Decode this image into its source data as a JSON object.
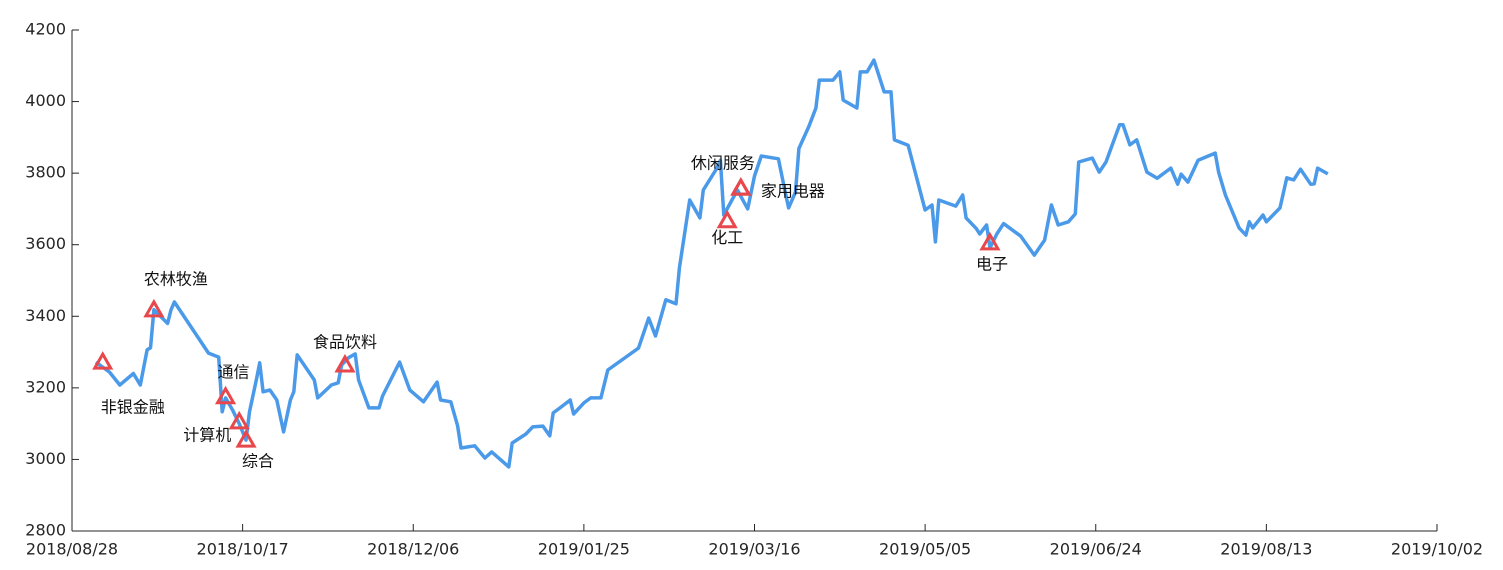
{
  "chart_data": {
    "type": "line",
    "x": [
      "2018/09/04",
      "2018/09/08",
      "2018/09/11",
      "2018/09/15",
      "2018/09/17",
      "2018/09/19",
      "2018/09/20",
      "2018/09/21",
      "2018/09/25",
      "2018/09/26",
      "2018/09/27",
      "2018/10/07",
      "2018/10/10",
      "2018/10/11",
      "2018/10/12",
      "2018/10/14",
      "2018/10/16",
      "2018/10/18",
      "2018/10/19",
      "2018/10/21",
      "2018/10/22",
      "2018/10/23",
      "2018/10/25",
      "2018/10/27",
      "2018/10/29",
      "2018/10/31",
      "2018/11/01",
      "2018/11/02",
      "2018/11/04",
      "2018/11/07",
      "2018/11/08",
      "2018/11/12",
      "2018/11/14",
      "2018/11/15",
      "2018/11/17",
      "2018/11/19",
      "2018/11/20",
      "2018/11/23",
      "2018/11/26",
      "2018/11/27",
      "2018/12/02",
      "2018/12/05",
      "2018/12/09",
      "2018/12/13",
      "2018/12/14",
      "2018/12/17",
      "2018/12/19",
      "2018/12/20",
      "2018/12/24",
      "2018/12/27",
      "2018/12/29",
      "2019/01/03",
      "2019/01/04",
      "2019/01/08",
      "2019/01/10",
      "2019/01/13",
      "2019/01/15",
      "2019/01/16",
      "2019/01/18",
      "2019/01/21",
      "2019/01/22",
      "2019/01/25",
      "2019/01/27",
      "2019/01/30",
      "2019/02/01",
      "2019/02/10",
      "2019/02/13",
      "2019/02/15",
      "2019/02/18",
      "2019/02/21",
      "2019/02/22",
      "2019/02/25",
      "2019/02/28",
      "2019/03/01",
      "2019/03/05",
      "2019/03/06",
      "2019/03/07",
      "2019/03/11",
      "2019/03/14",
      "2019/03/16",
      "2019/03/18",
      "2019/03/23",
      "2019/03/25",
      "2019/03/26",
      "2019/03/28",
      "2019/03/29",
      "2019/04/01",
      "2019/04/03",
      "2019/04/04",
      "2019/04/08",
      "2019/04/10",
      "2019/04/11",
      "2019/04/15",
      "2019/04/16",
      "2019/04/18",
      "2019/04/20",
      "2019/04/23",
      "2019/04/25",
      "2019/04/26",
      "2019/04/30",
      "2019/05/05",
      "2019/05/07",
      "2019/05/08",
      "2019/05/09",
      "2019/05/14",
      "2019/05/16",
      "2019/05/17",
      "2019/05/20",
      "2019/05/21",
      "2019/05/23",
      "2019/05/24",
      "2019/05/26",
      "2019/05/28",
      "2019/06/02",
      "2019/06/06",
      "2019/06/09",
      "2019/06/11",
      "2019/06/13",
      "2019/06/16",
      "2019/06/18",
      "2019/06/19",
      "2019/06/23",
      "2019/06/25",
      "2019/06/27",
      "2019/07/01",
      "2019/07/02",
      "2019/07/04",
      "2019/07/06",
      "2019/07/09",
      "2019/07/12",
      "2019/07/16",
      "2019/07/18",
      "2019/07/19",
      "2019/07/21",
      "2019/07/24",
      "2019/07/29",
      "2019/07/30",
      "2019/08/01",
      "2019/08/05",
      "2019/08/07",
      "2019/08/08",
      "2019/08/09",
      "2019/08/12",
      "2019/08/13",
      "2019/08/17",
      "2019/08/19",
      "2019/08/21",
      "2019/08/23",
      "2019/08/26",
      "2019/08/27",
      "2019/08/28",
      "2019/08/31"
    ],
    "series": [
      {
        "color": "#4a9ae9",
        "values": [
          3272,
          3244,
          3208,
          3240,
          3208,
          3306,
          3312,
          3418,
          3380,
          3418,
          3440,
          3297,
          3286,
          3133,
          3172,
          3139,
          3100,
          3054,
          3133,
          3222,
          3270,
          3189,
          3194,
          3166,
          3077,
          3166,
          3189,
          3292,
          3264,
          3222,
          3172,
          3208,
          3214,
          3264,
          3284,
          3295,
          3222,
          3144,
          3144,
          3177,
          3272,
          3194,
          3161,
          3216,
          3166,
          3161,
          3094,
          3032,
          3038,
          3004,
          3021,
          2979,
          3046,
          3071,
          3091,
          3093,
          3066,
          3130,
          3144,
          3166,
          3127,
          3158,
          3172,
          3172,
          3250,
          3311,
          3395,
          3345,
          3446,
          3435,
          3535,
          3725,
          3675,
          3753,
          3814,
          3836,
          3683,
          3753,
          3700,
          3792,
          3848,
          3840,
          3747,
          3703,
          3747,
          3869,
          3932,
          3982,
          4060,
          4060,
          4083,
          4004,
          3982,
          4083,
          4083,
          4116,
          4027,
          4027,
          3893,
          3878,
          3697,
          3711,
          3608,
          3725,
          3708,
          3739,
          3675,
          3645,
          3630,
          3655,
          3591,
          3630,
          3659,
          3624,
          3571,
          3613,
          3711,
          3655,
          3664,
          3686,
          3831,
          3842,
          3803,
          3831,
          3935,
          3935,
          3879,
          3893,
          3803,
          3786,
          3814,
          3769,
          3797,
          3775,
          3836,
          3856,
          3803,
          3739,
          3647,
          3627,
          3664,
          3647,
          3683,
          3664,
          3703,
          3787,
          3781,
          3811,
          3769,
          3770,
          3814,
          3798
        ]
      }
    ],
    "annotations": [
      {
        "x": "2018/09/06",
        "value": 3272,
        "label": "非银金融",
        "color": "#e8474b"
      },
      {
        "x": "2018/09/21",
        "value": 3418,
        "label": "农林牧渔",
        "color": "#e8474b"
      },
      {
        "x": "2018/10/12",
        "value": 3175,
        "label": "通信",
        "color": "#e8474b"
      },
      {
        "x": "2018/10/16",
        "value": 3105,
        "label": "计算机",
        "color": "#e8474b"
      },
      {
        "x": "2018/10/18",
        "value": 3054,
        "label": "综合",
        "color": "#e8474b"
      },
      {
        "x": "2018/11/16",
        "value": 3264,
        "label": "食品饮料",
        "color": "#e8474b"
      },
      {
        "x": "2019/03/12",
        "value": 3758,
        "label": "休闲服务",
        "color": "#e8474b"
      },
      {
        "x": "2019/03/08",
        "value": 3667,
        "label": "化工",
        "color": "#e8474b"
      },
      {
        "x": "2019/03/12",
        "value": 3758,
        "label": "家用电器",
        "color": "#e8474b"
      },
      {
        "x": "2019/05/24",
        "value": 3605,
        "label": "电子",
        "color": "#e8474b"
      }
    ],
    "xlim": [
      "2018/08/28",
      "2019/10/02"
    ],
    "xticks": [
      "2018/08/28",
      "2018/10/17",
      "2018/12/06",
      "2019/01/25",
      "2019/03/16",
      "2019/05/05",
      "2019/06/24",
      "2019/08/13",
      "2019/10/02"
    ],
    "ylim": [
      2800,
      4200
    ],
    "yticks": [
      2800,
      3000,
      3200,
      3400,
      3600,
      3800,
      4000,
      4200
    ]
  }
}
